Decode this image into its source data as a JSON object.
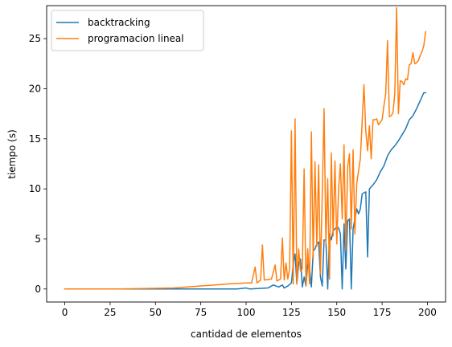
{
  "chart_data": {
    "type": "line",
    "title": "",
    "xlabel": "cantidad de elementos",
    "ylabel": "tiempo (s)",
    "xlim": [
      -10,
      210
    ],
    "ylim": [
      -1.3,
      28.3
    ],
    "xticks": [
      0,
      25,
      50,
      75,
      100,
      125,
      150,
      175,
      200
    ],
    "yticks": [
      0,
      5,
      10,
      15,
      20,
      25
    ],
    "grid": false,
    "legend_position": "top-left",
    "series": [
      {
        "name": "backtracking",
        "color": "#1f77b4",
        "points": [
          [
            0,
            0
          ],
          [
            25,
            0
          ],
          [
            50,
            0
          ],
          [
            75,
            0
          ],
          [
            95,
            0
          ],
          [
            100,
            0.1
          ],
          [
            102,
            0
          ],
          [
            112,
            0.1
          ],
          [
            115,
            0.4
          ],
          [
            118,
            0.2
          ],
          [
            120,
            0.4
          ],
          [
            121,
            0.1
          ],
          [
            123,
            0.3
          ],
          [
            125,
            0.6
          ],
          [
            126,
            2.5
          ],
          [
            127,
            3.5
          ],
          [
            128,
            0.5
          ],
          [
            129,
            2.6
          ],
          [
            130,
            3.0
          ],
          [
            131,
            0.2
          ],
          [
            132,
            1.2
          ],
          [
            133,
            0.3
          ],
          [
            134,
            2.5
          ],
          [
            135,
            2.0
          ],
          [
            136,
            0.2
          ],
          [
            137,
            3.8
          ],
          [
            138,
            4.0
          ],
          [
            139,
            4.5
          ],
          [
            140,
            4.7
          ],
          [
            141,
            1.2
          ],
          [
            142,
            0.3
          ],
          [
            143,
            4.9
          ],
          [
            144,
            4.9
          ],
          [
            145,
            0
          ],
          [
            146,
            5.5
          ],
          [
            147,
            4.9
          ],
          [
            148,
            5.8
          ],
          [
            149,
            6.0
          ],
          [
            150,
            6.2
          ],
          [
            151,
            6.1
          ],
          [
            152,
            5.5
          ],
          [
            153,
            0
          ],
          [
            154,
            6.5
          ],
          [
            155,
            2.0
          ],
          [
            156,
            6.8
          ],
          [
            157,
            7.0
          ],
          [
            158,
            0
          ],
          [
            159,
            6.0
          ],
          [
            160,
            7.0
          ],
          [
            161,
            8.0
          ],
          [
            162,
            7.5
          ],
          [
            163,
            8.0
          ],
          [
            164,
            9.5
          ],
          [
            165,
            9.6
          ],
          [
            166,
            9.7
          ],
          [
            167,
            3.2
          ],
          [
            168,
            10.0
          ],
          [
            170,
            10.4
          ],
          [
            172,
            10.9
          ],
          [
            174,
            11.7
          ],
          [
            176,
            12.3
          ],
          [
            178,
            13.3
          ],
          [
            180,
            13.9
          ],
          [
            182,
            14.3
          ],
          [
            184,
            14.8
          ],
          [
            186,
            15.4
          ],
          [
            188,
            16.0
          ],
          [
            190,
            16.9
          ],
          [
            192,
            17.3
          ],
          [
            194,
            18.0
          ],
          [
            196,
            18.8
          ],
          [
            198,
            19.6
          ],
          [
            199,
            19.6
          ]
        ]
      },
      {
        "name": "programacion lineal",
        "color": "#ff7f0e",
        "points": [
          [
            0,
            0
          ],
          [
            30,
            0
          ],
          [
            45,
            0.05
          ],
          [
            60,
            0.1
          ],
          [
            75,
            0.3
          ],
          [
            90,
            0.5
          ],
          [
            100,
            0.6
          ],
          [
            103,
            0.6
          ],
          [
            105,
            2.2
          ],
          [
            106,
            0.6
          ],
          [
            108,
            0.9
          ],
          [
            109,
            4.4
          ],
          [
            110,
            0.9
          ],
          [
            114,
            1.0
          ],
          [
            116,
            2.4
          ],
          [
            117,
            0.8
          ],
          [
            119,
            1.0
          ],
          [
            120,
            5.1
          ],
          [
            121,
            0.9
          ],
          [
            122,
            2.6
          ],
          [
            123,
            1.0
          ],
          [
            124,
            2.0
          ],
          [
            125,
            15.8
          ],
          [
            126,
            0.5
          ],
          [
            127,
            17.0
          ],
          [
            128,
            0.5
          ],
          [
            129,
            4.0
          ],
          [
            130,
            1.8
          ],
          [
            131,
            2.0
          ],
          [
            132,
            12.0
          ],
          [
            133,
            0.3
          ],
          [
            134,
            4.0
          ],
          [
            135,
            0.5
          ],
          [
            136,
            15.7
          ],
          [
            137,
            3.0
          ],
          [
            138,
            12.7
          ],
          [
            139,
            4.3
          ],
          [
            140,
            12.4
          ],
          [
            141,
            1.5
          ],
          [
            142,
            9.5
          ],
          [
            143,
            18.0
          ],
          [
            144,
            4.5
          ],
          [
            145,
            11.0
          ],
          [
            146,
            1.0
          ],
          [
            147,
            13.6
          ],
          [
            148,
            5.3
          ],
          [
            149,
            12.8
          ],
          [
            150,
            4.5
          ],
          [
            151,
            10.0
          ],
          [
            152,
            12.5
          ],
          [
            153,
            7.0
          ],
          [
            154,
            14.4
          ],
          [
            155,
            4.0
          ],
          [
            156,
            12.2
          ],
          [
            157,
            13.5
          ],
          [
            158,
            6.0
          ],
          [
            159,
            13.9
          ],
          [
            160,
            5.5
          ],
          [
            161,
            10.5
          ],
          [
            162,
            11.8
          ],
          [
            163,
            13.0
          ],
          [
            165,
            20.4
          ],
          [
            166,
            15.8
          ],
          [
            167,
            13.8
          ],
          [
            168,
            16.3
          ],
          [
            169,
            13.0
          ],
          [
            170,
            16.9
          ],
          [
            171,
            16.9
          ],
          [
            172,
            17.0
          ],
          [
            173,
            16.4
          ],
          [
            175,
            16.9
          ],
          [
            176,
            18.3
          ],
          [
            177,
            19.5
          ],
          [
            178,
            24.8
          ],
          [
            179,
            17.2
          ],
          [
            180,
            17.3
          ],
          [
            181,
            17.6
          ],
          [
            182,
            19.5
          ],
          [
            183,
            28.1
          ],
          [
            184,
            17.5
          ],
          [
            185,
            20.8
          ],
          [
            186,
            20.7
          ],
          [
            187,
            20.4
          ],
          [
            188,
            21.0
          ],
          [
            189,
            20.9
          ],
          [
            190,
            22.4
          ],
          [
            191,
            22.5
          ],
          [
            192,
            23.6
          ],
          [
            193,
            22.5
          ],
          [
            194,
            22.6
          ],
          [
            195,
            22.8
          ],
          [
            196,
            23.3
          ],
          [
            197,
            23.7
          ],
          [
            198,
            24.3
          ],
          [
            199,
            25.7
          ]
        ]
      }
    ]
  }
}
